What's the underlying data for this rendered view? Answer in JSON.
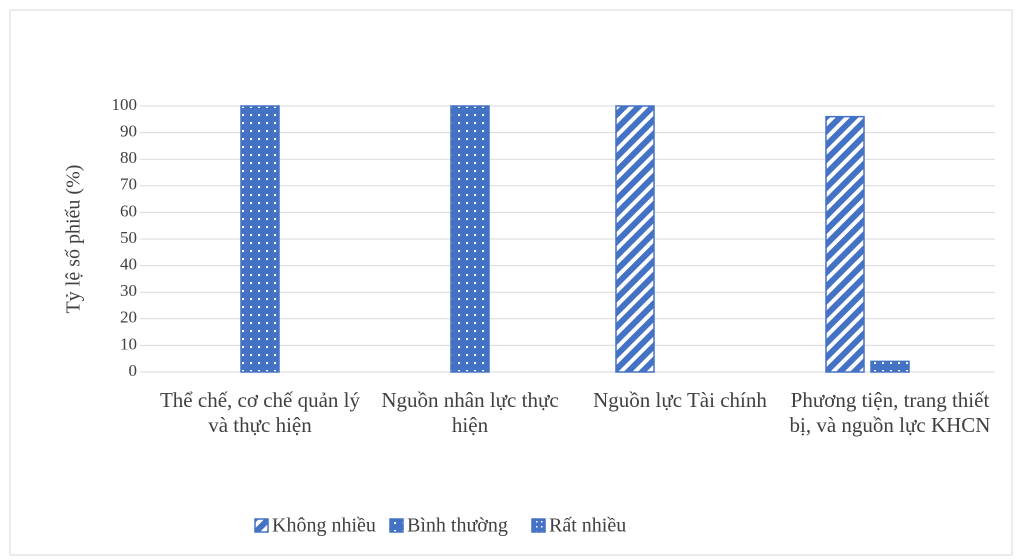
{
  "chart_data": {
    "type": "bar",
    "y_label": "Tỷ lệ số phiếu (%)",
    "categories": [
      "Thể chế, cơ chế quản lý và thực hiện",
      "Nguồn nhân lực thực hiện",
      "Nguồn lực Tài chính",
      "Phương tiện, trang thiết bị, và nguồn lực KHCN"
    ],
    "series": [
      {
        "name": "Không nhiều",
        "color": "#4472c4",
        "values": [
          0,
          0,
          100,
          96
        ]
      },
      {
        "name": "Bình thường",
        "color": "#4472c4",
        "values": [
          100,
          100,
          0,
          4
        ]
      },
      {
        "name": "Rất nhiều",
        "color": "#4472c4",
        "values": [
          0,
          0,
          0,
          0
        ]
      }
    ],
    "ylim": [
      0,
      100
    ],
    "yticks": [
      0,
      10,
      20,
      30,
      40,
      50,
      60,
      70,
      80,
      90,
      100
    ],
    "grid": true,
    "legend": "bottom"
  }
}
